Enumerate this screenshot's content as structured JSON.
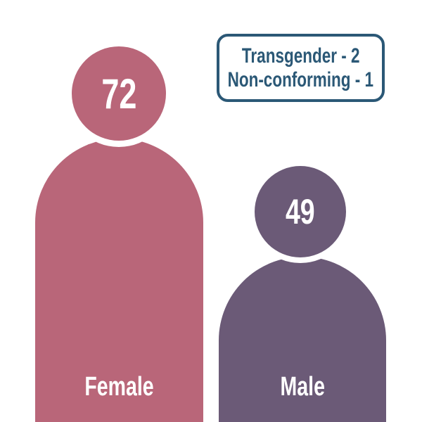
{
  "chart_data": {
    "type": "pictogram",
    "title": "",
    "categories": [
      "Female",
      "Male",
      "Transgender",
      "Non-conforming"
    ],
    "values": [
      72,
      49,
      2,
      1
    ],
    "legend_position": "top-right",
    "grid": false,
    "colors": {
      "female": "#b96679",
      "male": "#6b5a77",
      "legend_border": "#2b5876",
      "legend_text": "#2b5876",
      "value_text": "#ffffff",
      "background": "#ffffff"
    }
  },
  "figures": [
    {
      "id": "female",
      "label": "Female",
      "value": "72",
      "color": "#b96679"
    },
    {
      "id": "male",
      "label": "Male",
      "value": "49",
      "color": "#6b5a77"
    }
  ],
  "legend": {
    "lines": [
      {
        "label": "Transgender",
        "value": 2,
        "text": "Transgender - 2"
      },
      {
        "label": "Non-conforming",
        "value": 1,
        "text": "Non-conforming - 1"
      }
    ]
  }
}
